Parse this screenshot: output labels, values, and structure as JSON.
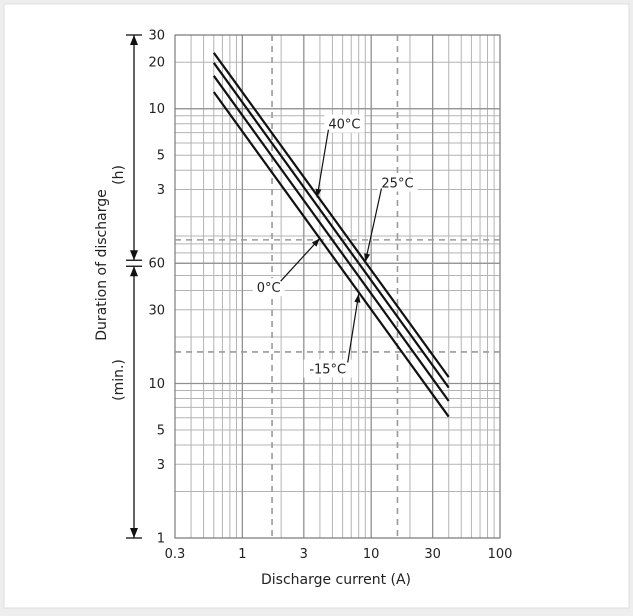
{
  "chart_data": {
    "type": "line",
    "xlabel": "Discharge current (A)",
    "ylabel": "Duration of discharge",
    "y_unit_hours": "(h)",
    "y_unit_minutes": "(min.)",
    "x_scale": "log",
    "y_scale": "log",
    "xlim": [
      0.3,
      100
    ],
    "ylim_minutes": [
      1,
      1800
    ],
    "x_ticks": [
      {
        "value": 0.3,
        "label": "0.3"
      },
      {
        "value": 1,
        "label": "1"
      },
      {
        "value": 3,
        "label": "3"
      },
      {
        "value": 10,
        "label": "10"
      },
      {
        "value": 30,
        "label": "30"
      },
      {
        "value": 100,
        "label": "100"
      }
    ],
    "y_ticks_hours": [
      {
        "minutes": 1800,
        "label": "30"
      },
      {
        "minutes": 1200,
        "label": "20"
      },
      {
        "minutes": 600,
        "label": "10"
      },
      {
        "minutes": 300,
        "label": "5"
      },
      {
        "minutes": 180,
        "label": "3"
      }
    ],
    "y_ticks_minutes": [
      {
        "minutes": 60,
        "label": "60"
      },
      {
        "minutes": 30,
        "label": "30"
      },
      {
        "minutes": 10,
        "label": "10"
      },
      {
        "minutes": 5,
        "label": "5"
      },
      {
        "minutes": 3,
        "label": "3"
      },
      {
        "minutes": 1,
        "label": "1"
      }
    ],
    "reference_lines_x": [
      1.7,
      16
    ],
    "reference_lines_y_minutes": [
      85,
      16
    ],
    "grid": true,
    "series": [
      {
        "name": "40°C",
        "x": [
          0.6,
          40
        ],
        "y": [
          1380,
          11
        ]
      },
      {
        "name": "25°C",
        "x": [
          0.6,
          40
        ],
        "y": [
          1190,
          9.4
        ]
      },
      {
        "name": "0°C",
        "x": [
          0.6,
          40
        ],
        "y": [
          980,
          7.7
        ]
      },
      {
        "name": "-15°C",
        "x": [
          0.6,
          40
        ],
        "y": [
          770,
          6.1
        ]
      }
    ],
    "annotations": [
      {
        "label": "40°C",
        "series": "40°C",
        "label_at": [
          6.2,
          480
        ],
        "arrow_to": [
          3.8,
          160
        ]
      },
      {
        "label": "25°C",
        "series": "25°C",
        "label_at": [
          16,
          200
        ],
        "arrow_to": [
          9.0,
          61
        ]
      },
      {
        "label": "0°C",
        "series": "0°C",
        "label_at": [
          1.6,
          42
        ],
        "arrow_to": [
          4.0,
          87
        ]
      },
      {
        "label": "-15°C",
        "series": "-15°C",
        "label_at": [
          4.6,
          12.5
        ],
        "arrow_to": [
          8.0,
          38
        ]
      }
    ]
  }
}
